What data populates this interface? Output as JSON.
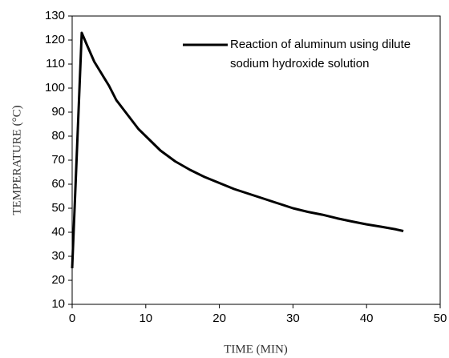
{
  "chart_data": {
    "type": "line",
    "x_label": "TIME (MIN)",
    "y_label": "TEMPERATURE (°C)",
    "x": [
      0,
      1.3,
      2,
      3,
      4,
      5,
      6,
      7,
      8,
      9,
      10,
      12,
      14,
      16,
      18,
      20,
      22,
      24,
      26,
      28,
      30,
      32,
      34,
      36,
      38,
      40,
      42,
      44,
      45
    ],
    "series": [
      {
        "name": "Reaction of aluminum using dilute sodium hydroxide solution",
        "color": "#000000",
        "values": [
          25,
          123,
          118,
          111,
          106,
          101,
          95,
          91,
          87,
          83,
          80,
          74,
          69.5,
          66,
          63,
          60.5,
          58,
          56,
          54,
          52,
          50,
          48.5,
          47.3,
          45.8,
          44.5,
          43.3,
          42.3,
          41.2,
          40.5
        ]
      }
    ],
    "xlim": [
      0,
      50
    ],
    "xticks": [
      0,
      10,
      20,
      30,
      40,
      50
    ],
    "ylim": [
      10,
      130
    ],
    "yticks": [
      10,
      20,
      30,
      40,
      50,
      60,
      70,
      80,
      90,
      100,
      110,
      120,
      130
    ],
    "legend": "upper right"
  }
}
